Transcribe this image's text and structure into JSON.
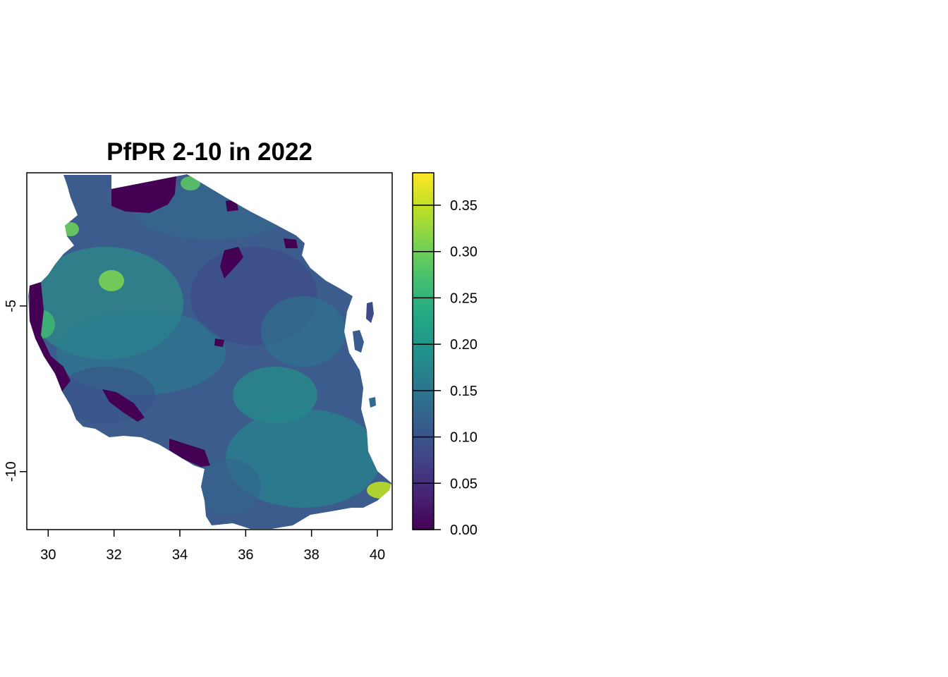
{
  "title": "PfPR 2-10 in 2022",
  "map": {
    "x_ticks": [
      "30",
      "32",
      "34",
      "36",
      "38",
      "40"
    ],
    "y_ticks": [
      "-5",
      "-10"
    ],
    "lon_range": [
      29.35,
      40.45
    ],
    "lat_range": [
      -11.75,
      -0.98
    ]
  },
  "legend": {
    "ticks": [
      "0.35",
      "0.30",
      "0.25",
      "0.20",
      "0.15",
      "0.10",
      "0.05",
      "0.00"
    ],
    "range": [
      0,
      0.385
    ]
  },
  "colors": {
    "viridis_low": "#440154",
    "viridis_mid": "#21918c",
    "viridis_high": "#fde725"
  }
}
